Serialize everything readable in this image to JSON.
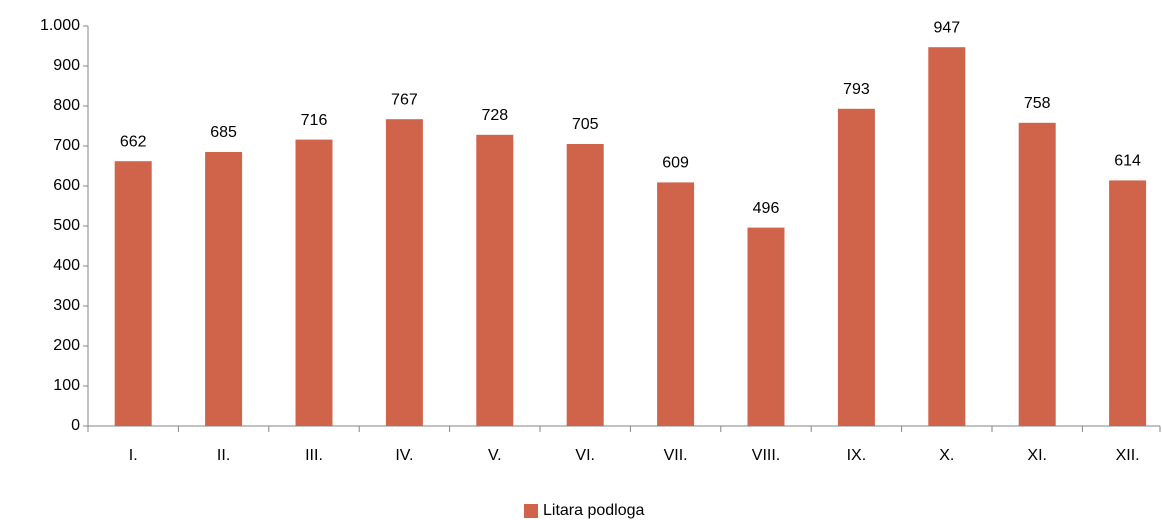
{
  "chart_data": {
    "type": "bar",
    "categories": [
      "I.",
      "II.",
      "III.",
      "IV.",
      "V.",
      "VI.",
      "VII.",
      "VIII.",
      "IX.",
      "X.",
      "XI.",
      "XII."
    ],
    "series": [
      {
        "name": "Litara podloga",
        "color": "#d0644a",
        "values": [
          662,
          685,
          716,
          767,
          728,
          705,
          609,
          496,
          793,
          947,
          758,
          614
        ]
      }
    ],
    "ylim": [
      0,
      1000
    ],
    "yticks": [
      0,
      100,
      200,
      300,
      400,
      500,
      600,
      700,
      800,
      900,
      {
        "value": 1000,
        "label": "1.000"
      }
    ],
    "grid": false,
    "legend": "bottom"
  }
}
